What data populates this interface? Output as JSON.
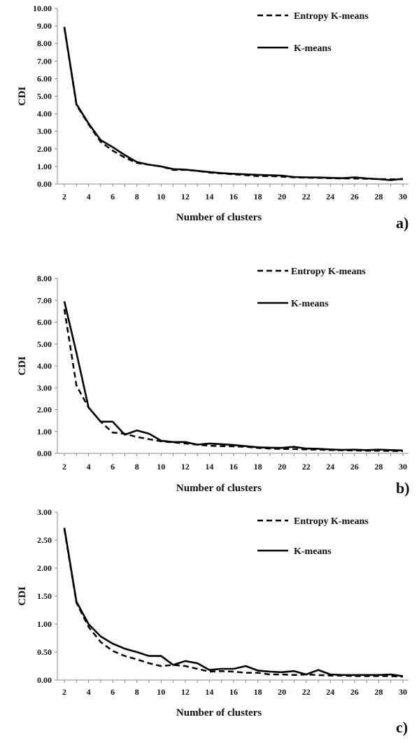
{
  "colors": {
    "axis": "#888888",
    "series": "#000000"
  },
  "chart_data": [
    {
      "type": "line",
      "panel_label": "a)",
      "xlabel": "Number  of clusters",
      "ylabel": "CDI",
      "xlim": [
        2,
        30
      ],
      "ylim": [
        0,
        10
      ],
      "yticks": [
        "0.00",
        "1.00",
        "2.00",
        "3.00",
        "4.00",
        "5.00",
        "6.00",
        "7.00",
        "8.00",
        "9.00",
        "10.00"
      ],
      "xticks": [
        "2",
        "4",
        "6",
        "8",
        "10",
        "12",
        "14",
        "16",
        "18",
        "20",
        "22",
        "24",
        "26",
        "28",
        "30"
      ],
      "legend_position": "top-right",
      "grid": false,
      "x": [
        2,
        3,
        4,
        5,
        6,
        7,
        8,
        9,
        10,
        11,
        12,
        13,
        14,
        15,
        16,
        17,
        18,
        19,
        20,
        21,
        22,
        23,
        24,
        25,
        26,
        27,
        28,
        29,
        30
      ],
      "series": [
        {
          "name": "Entropy K-means",
          "style": "dashed",
          "values": [
            8.9,
            4.5,
            3.4,
            2.4,
            1.9,
            1.5,
            1.2,
            1.1,
            1.0,
            0.8,
            0.8,
            0.75,
            0.65,
            0.6,
            0.55,
            0.5,
            0.45,
            0.45,
            0.42,
            0.38,
            0.36,
            0.35,
            0.33,
            0.32,
            0.31,
            0.3,
            0.28,
            0.27,
            0.27
          ]
        },
        {
          "name": "K-means",
          "style": "solid",
          "values": [
            8.95,
            4.55,
            3.45,
            2.5,
            2.1,
            1.65,
            1.25,
            1.1,
            1.0,
            0.85,
            0.82,
            0.75,
            0.68,
            0.62,
            0.58,
            0.55,
            0.52,
            0.5,
            0.48,
            0.4,
            0.38,
            0.37,
            0.35,
            0.33,
            0.38,
            0.32,
            0.28,
            0.22,
            0.3
          ]
        }
      ]
    },
    {
      "type": "line",
      "panel_label": "b)",
      "xlabel": "Number  of clusters",
      "ylabel": "CDI",
      "xlim": [
        2,
        30
      ],
      "ylim": [
        0,
        8
      ],
      "yticks": [
        "0.00",
        "1.00",
        "2.00",
        "3.00",
        "4.00",
        "5.00",
        "6.00",
        "7.00",
        "8.00"
      ],
      "xticks": [
        "2",
        "4",
        "6",
        "8",
        "10",
        "12",
        "14",
        "16",
        "18",
        "20",
        "22",
        "24",
        "26",
        "28",
        "30"
      ],
      "legend_position": "top-right",
      "grid": false,
      "x": [
        2,
        3,
        4,
        5,
        6,
        7,
        8,
        9,
        10,
        11,
        12,
        13,
        14,
        15,
        16,
        17,
        18,
        19,
        20,
        21,
        22,
        23,
        24,
        25,
        26,
        27,
        28,
        29,
        30
      ],
      "series": [
        {
          "name": "Entropy K-means",
          "style": "dashed",
          "values": [
            6.6,
            3.1,
            2.1,
            1.45,
            0.95,
            0.9,
            0.75,
            0.65,
            0.55,
            0.5,
            0.45,
            0.4,
            0.35,
            0.33,
            0.32,
            0.3,
            0.25,
            0.22,
            0.2,
            0.2,
            0.18,
            0.17,
            0.15,
            0.14,
            0.13,
            0.12,
            0.12,
            0.11,
            0.1
          ]
        },
        {
          "name": "K-means",
          "style": "solid",
          "values": [
            6.95,
            4.6,
            2.1,
            1.45,
            1.45,
            0.85,
            1.05,
            0.9,
            0.58,
            0.52,
            0.52,
            0.4,
            0.45,
            0.42,
            0.38,
            0.33,
            0.28,
            0.26,
            0.25,
            0.3,
            0.22,
            0.21,
            0.18,
            0.16,
            0.17,
            0.15,
            0.17,
            0.15,
            0.13
          ]
        }
      ]
    },
    {
      "type": "line",
      "panel_label": "c)",
      "xlabel": "Number  of clusters",
      "ylabel": "CDI",
      "xlim": [
        2,
        30
      ],
      "ylim": [
        0,
        3
      ],
      "yticks": [
        "0.00",
        "0.50",
        "1.00",
        "1.50",
        "2.00",
        "2.50",
        "3.00"
      ],
      "xticks": [
        "2",
        "4",
        "6",
        "8",
        "10",
        "12",
        "14",
        "16",
        "18",
        "20",
        "22",
        "24",
        "26",
        "28",
        "30"
      ],
      "legend_position": "top-right",
      "grid": false,
      "x": [
        2,
        3,
        4,
        5,
        6,
        7,
        8,
        9,
        10,
        11,
        12,
        13,
        14,
        15,
        16,
        17,
        18,
        19,
        20,
        21,
        22,
        23,
        24,
        25,
        26,
        27,
        28,
        29,
        30
      ],
      "series": [
        {
          "name": "Entropy K-means",
          "style": "dashed",
          "values": [
            2.7,
            1.38,
            0.95,
            0.68,
            0.52,
            0.43,
            0.37,
            0.3,
            0.25,
            0.27,
            0.25,
            0.2,
            0.15,
            0.16,
            0.15,
            0.13,
            0.13,
            0.1,
            0.1,
            0.09,
            0.1,
            0.09,
            0.08,
            0.08,
            0.07,
            0.07,
            0.07,
            0.07,
            0.06
          ]
        },
        {
          "name": "K-means",
          "style": "solid",
          "values": [
            2.72,
            1.4,
            1.0,
            0.78,
            0.65,
            0.56,
            0.5,
            0.43,
            0.43,
            0.27,
            0.34,
            0.3,
            0.18,
            0.2,
            0.2,
            0.25,
            0.17,
            0.15,
            0.14,
            0.16,
            0.1,
            0.18,
            0.1,
            0.09,
            0.09,
            0.09,
            0.09,
            0.1,
            0.07
          ]
        }
      ]
    }
  ]
}
